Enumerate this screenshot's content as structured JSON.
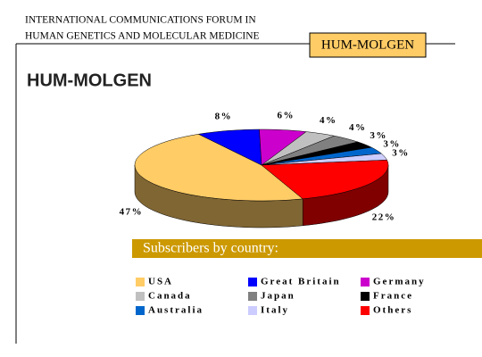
{
  "header": {
    "lines": [
      "INTERNATIONAL COMMUNICATIONS FORUM IN",
      "HUMAN GENETICS AND MOLECULAR MEDICINE"
    ],
    "badge": "HUM-MOLGEN"
  },
  "chart_data": {
    "type": "pie3d",
    "title": "HUM-MOLGEN",
    "subtitle": "Subscribers by country:",
    "categories": [
      "USA",
      "Great Britain",
      "Germany",
      "Canada",
      "Japan",
      "France",
      "Australia",
      "Italy",
      "Others"
    ],
    "values": [
      47,
      8,
      6,
      4,
      4,
      3,
      3,
      3,
      22
    ],
    "value_labels": [
      "47%",
      "8%",
      "6%",
      "4%",
      "4%",
      "3%",
      "3%",
      "3%",
      "22%"
    ],
    "colors": [
      "#ffcc66",
      "#0000ff",
      "#cc00cc",
      "#c0c0c0",
      "#808080",
      "#000000",
      "#0066cc",
      "#ccccff",
      "#ff0000"
    ]
  }
}
